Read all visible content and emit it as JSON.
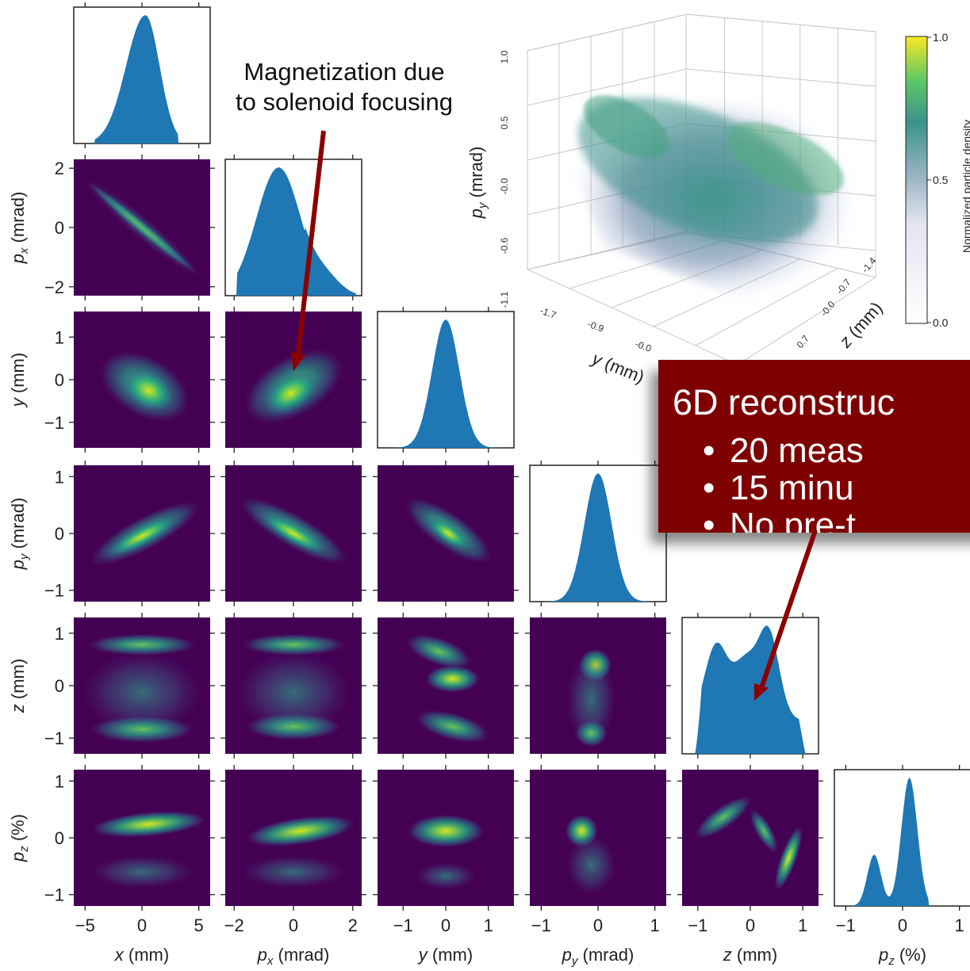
{
  "corner_plot": {
    "variables": [
      "x",
      "px",
      "y",
      "py",
      "z",
      "pz"
    ],
    "axis_labels": {
      "x": {
        "sym": "x",
        "sub": "",
        "unit": " (mm)"
      },
      "px": {
        "sym": "p",
        "sub": "x",
        "unit": " (mrad)"
      },
      "y": {
        "sym": "y",
        "sub": "",
        "unit": " (mm)"
      },
      "py": {
        "sym": "p",
        "sub": "y",
        "unit": " (mrad)"
      },
      "z": {
        "sym": "z",
        "sub": "",
        "unit": " (mm)"
      },
      "pz": {
        "sym": "p",
        "sub": "z",
        "unit": " (%)"
      }
    },
    "ticks": {
      "x": {
        "labels": [
          "−5",
          "0",
          "5"
        ]
      },
      "px": {
        "labels": [
          "−2",
          "0",
          "2"
        ]
      },
      "y": {
        "labels": [
          "−1",
          "0",
          "1"
        ]
      },
      "py": {
        "labels": [
          "−1",
          "0",
          "1"
        ]
      },
      "z": {
        "labels": [
          "−1",
          "0",
          "1"
        ]
      },
      "pz": {
        "labels": [
          "−1",
          "0",
          "1"
        ]
      }
    }
  },
  "chart_data": {
    "type": "heatmap",
    "title": "",
    "colormap": "viridis",
    "histogram_color": "#1f77b4",
    "axis_ranges": {
      "x": [
        -6,
        6
      ],
      "px": [
        -2.3,
        2.3
      ],
      "y": [
        -1.6,
        1.6
      ],
      "py": [
        -1.2,
        1.2
      ],
      "z": [
        -1.3,
        1.3
      ],
      "pz": [
        -1.2,
        1.2
      ]
    },
    "marginals": [
      {
        "var": "x",
        "shape": "skewed peak near 0, range -4 to 3"
      },
      {
        "var": "px",
        "shape": "peak near -0.5, range -2 to 2"
      },
      {
        "var": "y",
        "shape": "gaussian centered at 0, sigma ~0.3"
      },
      {
        "var": "py",
        "shape": "gaussian centered at 0, sigma ~0.25"
      },
      {
        "var": "z",
        "shape": "three peaks at -0.6, -0.1, 0.4"
      },
      {
        "var": "pz",
        "shape": "main peak at 0.1, secondary shoulder at -0.5"
      }
    ],
    "correlations": [
      {
        "pair": [
          "x",
          "px"
        ],
        "corr": -0.98
      },
      {
        "pair": [
          "x",
          "y"
        ],
        "corr": -0.4
      },
      {
        "pair": [
          "px",
          "y"
        ],
        "corr": 0.55
      },
      {
        "pair": [
          "x",
          "py"
        ],
        "corr": 0.6
      },
      {
        "pair": [
          "px",
          "py"
        ],
        "corr": -0.6
      },
      {
        "pair": [
          "y",
          "py"
        ],
        "corr": -0.7
      }
    ],
    "inset_3d": {
      "type": "scatter",
      "ylabel": "p_y (mrad)",
      "xlabel": "y (mm)",
      "zlabel": "z (mm)",
      "vertical_ticks": [
        "1.0",
        "0.5",
        "-0.0",
        "-0.6",
        "-1.1"
      ],
      "y_ticks": [
        "-1.7",
        "-0.9",
        "-0.0",
        "0."
      ],
      "z_ticks": [
        "-1.4",
        "-0.7",
        "-0.0",
        "0.7"
      ],
      "colorbar": {
        "label": "Normalized particle density",
        "ticks": [
          "1.0",
          "0.5",
          "0.0"
        ]
      }
    }
  },
  "annotations": {
    "magnetization_line1": "Magnetization due",
    "magnetization_line2": "to solenoid focusing",
    "callout_title": "6D reconstruc",
    "callout_bullets": [
      "20 meas",
      "15 minu",
      "No pre-t"
    ]
  }
}
